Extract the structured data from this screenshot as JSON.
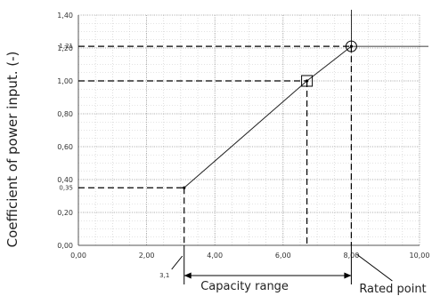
{
  "chart_data": {
    "type": "line",
    "ylabel": "Coefficient of power input. (-)",
    "xlim": [
      0,
      10
    ],
    "ylim": [
      0,
      1.4
    ],
    "x_ticks": [
      {
        "v": 0,
        "label": "0,00"
      },
      {
        "v": 2,
        "label": "2,00"
      },
      {
        "v": 4,
        "label": "4,00"
      },
      {
        "v": 6,
        "label": "6,00"
      },
      {
        "v": 8,
        "label": "8,00"
      },
      {
        "v": 10,
        "label": "10,00"
      }
    ],
    "y_ticks": [
      {
        "v": 0,
        "label": "0,00"
      },
      {
        "v": 0.2,
        "label": "0,20"
      },
      {
        "v": 0.4,
        "label": "0,40"
      },
      {
        "v": 0.6,
        "label": "0,60"
      },
      {
        "v": 0.8,
        "label": "0,80"
      },
      {
        "v": 1.0,
        "label": "1,00"
      },
      {
        "v": 1.2,
        "label": "1,20"
      },
      {
        "v": 1.4,
        "label": "1,40"
      }
    ],
    "grid": true,
    "series": [
      {
        "x": [
          3.1,
          6.7,
          8.0
        ],
        "y": [
          0.35,
          1.0,
          1.21
        ]
      }
    ],
    "reference_lines": [
      {
        "x": 3.1,
        "y": 0.35,
        "x_label": "3,1",
        "y_label": "0,35"
      },
      {
        "x": 6.7,
        "y": 1.0
      },
      {
        "x": 8.0,
        "y": 1.21,
        "y_label": "1,21"
      }
    ],
    "markers": [
      {
        "x": 6.7,
        "y": 1.0,
        "shape": "square"
      },
      {
        "x": 8.0,
        "y": 1.21,
        "shape": "circle"
      }
    ],
    "annotations": {
      "capacity_range": "Capacity range",
      "rated_point": "Rated point"
    },
    "colors": {
      "line": "#222222",
      "grid": "#9a9a9a",
      "dash": "#000000",
      "text": "#333333"
    }
  }
}
